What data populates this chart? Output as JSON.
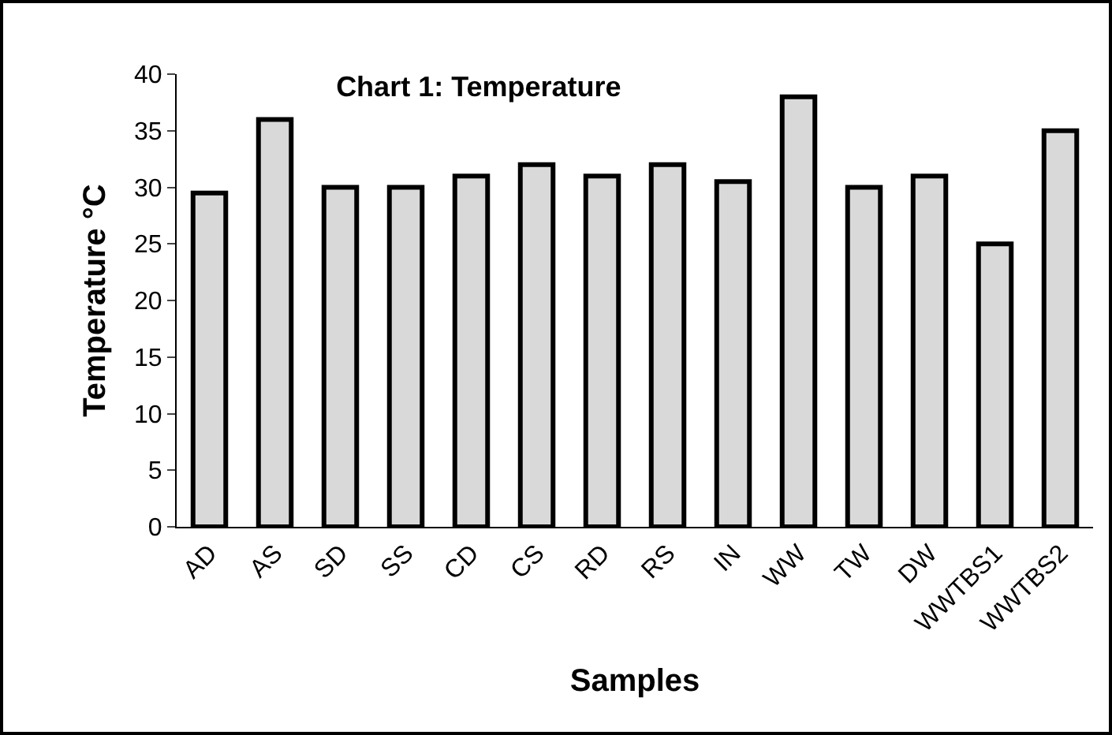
{
  "chart_data": {
    "type": "bar",
    "title": "Chart 1: Temperature",
    "xlabel": "Samples",
    "ylabel": "Temperature °C",
    "categories": [
      "AD",
      "AS",
      "SD",
      "SS",
      "CD",
      "CS",
      "RD",
      "RS",
      "IN",
      "WW",
      "TW",
      "DW",
      "WWTBS1",
      "WWTBS2"
    ],
    "values": [
      29.5,
      36,
      30,
      30,
      31,
      32,
      31,
      32,
      30.5,
      38,
      30,
      31,
      25,
      35
    ],
    "color": "#d9d9d9",
    "ylim": [
      0,
      40
    ],
    "yticks": [
      0,
      5,
      10,
      15,
      20,
      25,
      30,
      35,
      40
    ],
    "grid": false,
    "legend": false
  }
}
